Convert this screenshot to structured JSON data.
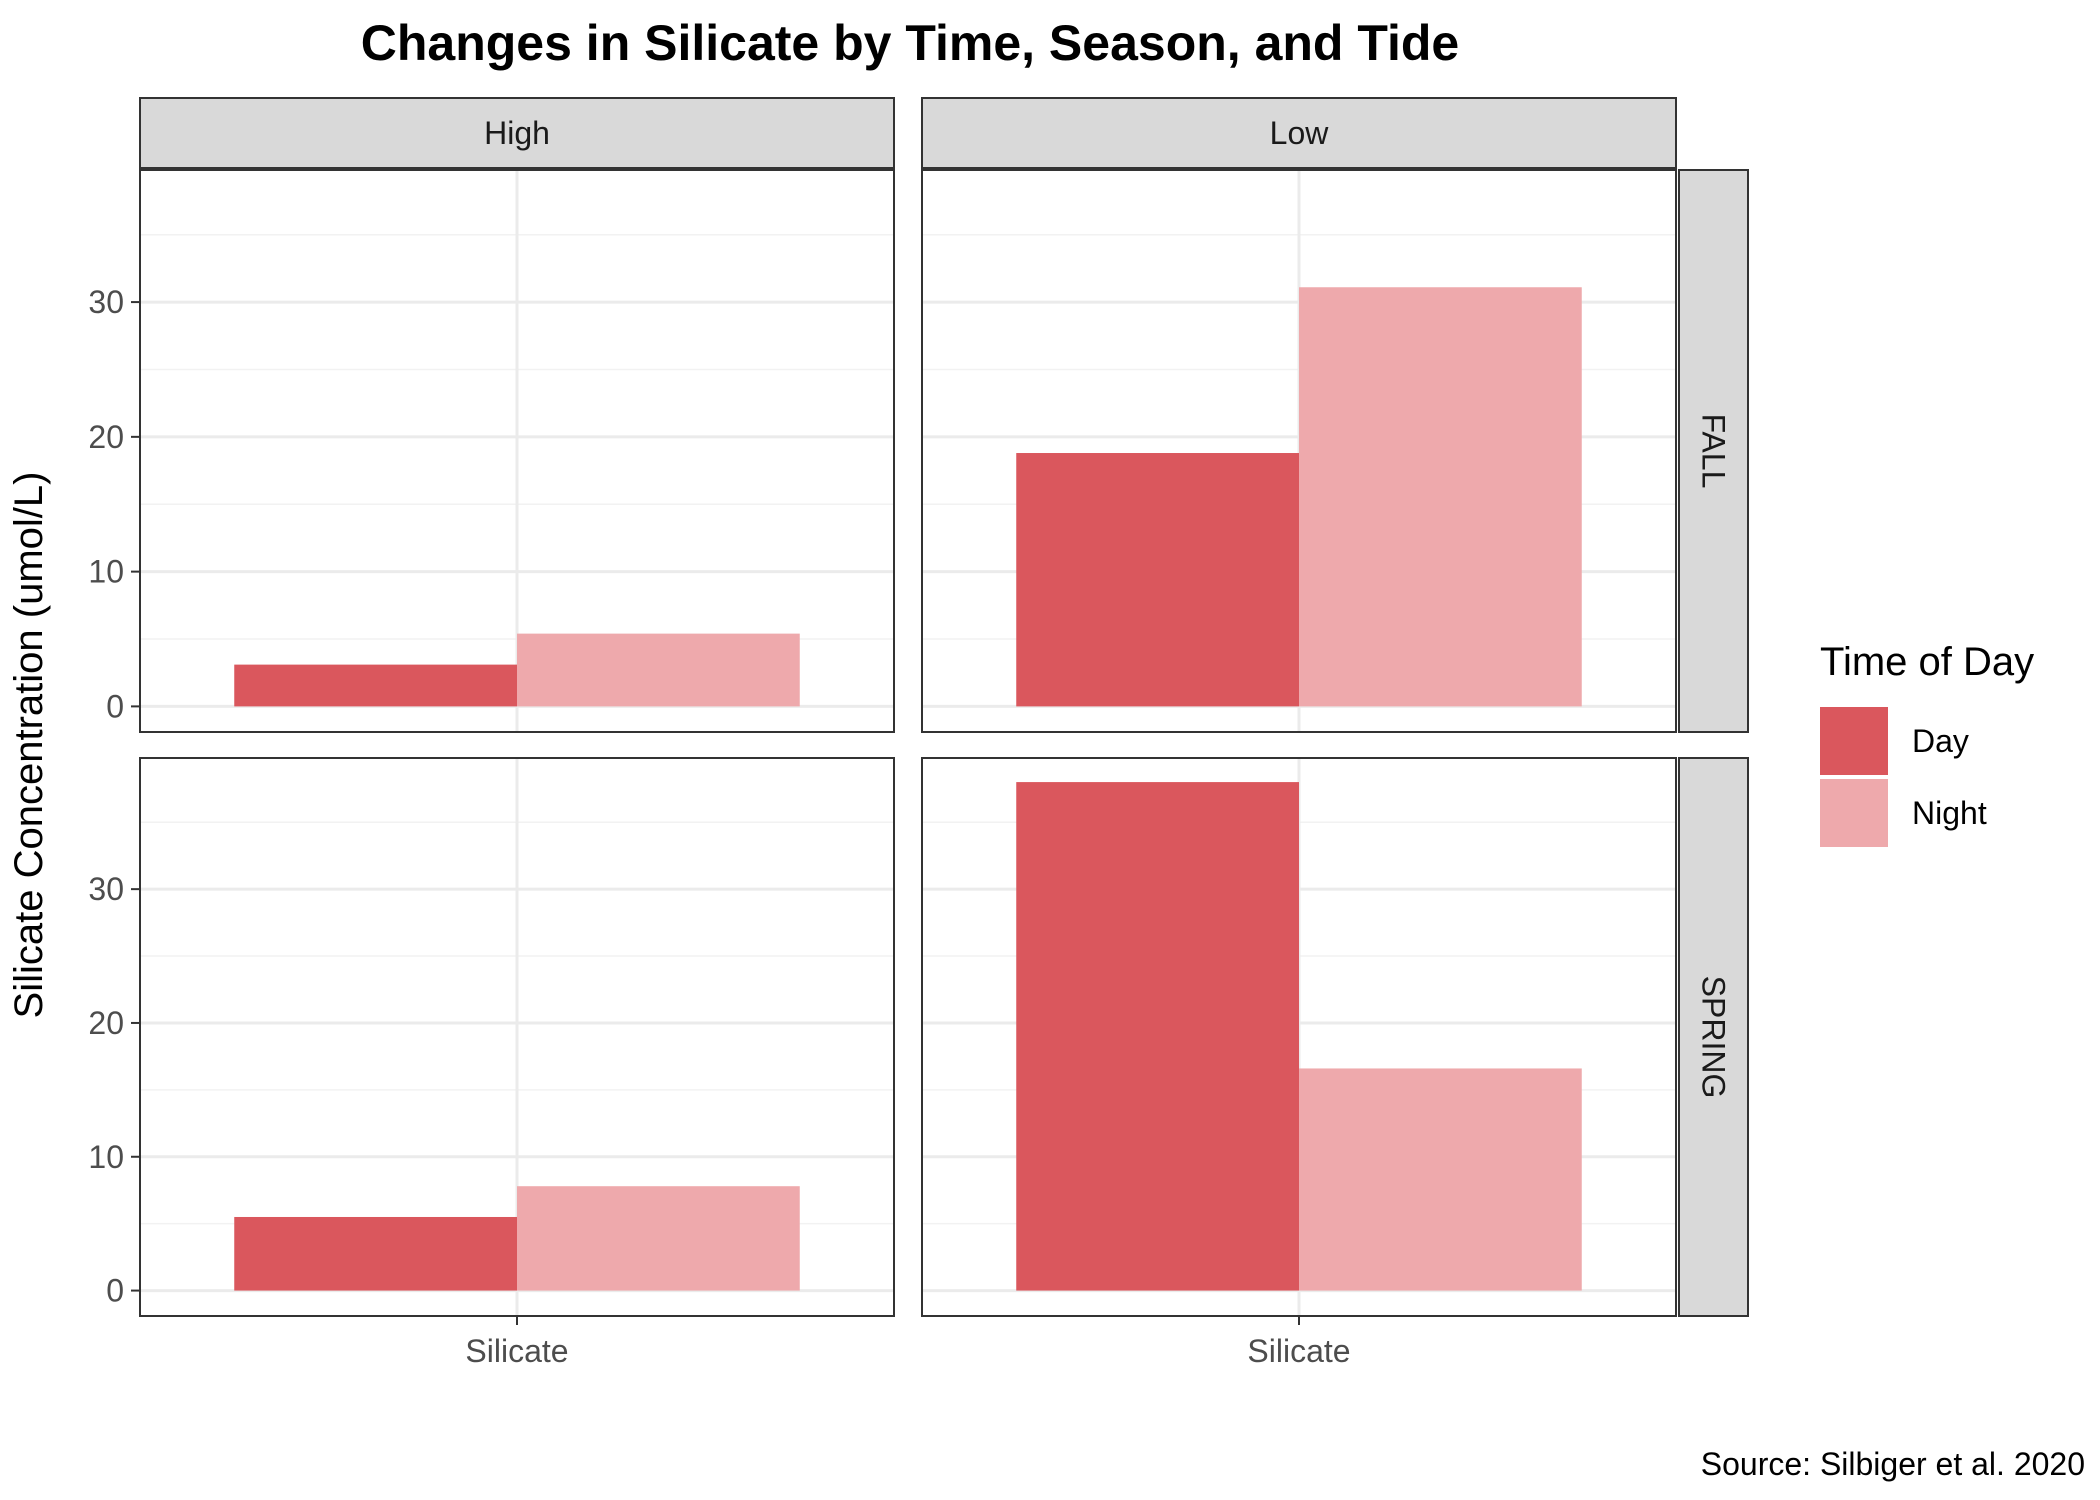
{
  "chart_data": {
    "type": "bar",
    "title": "Changes in Silicate by Time, Season, and Tide",
    "xlabel": "",
    "ylabel": "Silicate Concentration (umol/L)",
    "caption": "Source: Silbiger et al. 2020",
    "facet_cols": [
      "High",
      "Low"
    ],
    "facet_rows": [
      "FALL",
      "SPRING"
    ],
    "categories": [
      "Silicate"
    ],
    "ylim": [
      -1.9,
      39.8
    ],
    "yticks": [
      0,
      10,
      20,
      30
    ],
    "grid": true,
    "legend": {
      "title": "Time of Day",
      "position": "right",
      "entries": [
        {
          "name": "Day",
          "color": "#DA575D"
        },
        {
          "name": "Night",
          "color": "#EEA9AC"
        }
      ]
    },
    "panels": [
      {
        "tide": "High",
        "season": "FALL",
        "series": [
          {
            "name": "Day",
            "values": [
              3.1
            ]
          },
          {
            "name": "Night",
            "values": [
              5.4
            ]
          }
        ]
      },
      {
        "tide": "Low",
        "season": "FALL",
        "series": [
          {
            "name": "Day",
            "values": [
              18.8
            ]
          },
          {
            "name": "Night",
            "values": [
              31.1
            ]
          }
        ]
      },
      {
        "tide": "High",
        "season": "SPRING",
        "series": [
          {
            "name": "Day",
            "values": [
              5.5
            ]
          },
          {
            "name": "Night",
            "values": [
              7.8
            ]
          }
        ]
      },
      {
        "tide": "Low",
        "season": "SPRING",
        "series": [
          {
            "name": "Day",
            "values": [
              38.0
            ]
          },
          {
            "name": "Night",
            "values": [
              16.6
            ]
          }
        ]
      }
    ]
  }
}
